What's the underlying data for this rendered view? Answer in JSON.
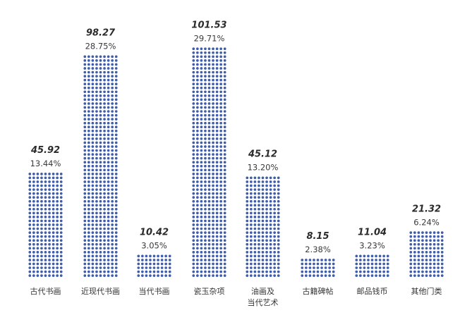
{
  "chart_data": {
    "type": "bar",
    "categories": [
      "古代书画",
      "近现代书画",
      "当代书画",
      "瓷玉杂项",
      "油画及当代艺术",
      "古籍碑帖",
      "邮品钱币",
      "其他门类"
    ],
    "category_lines": [
      [
        "古代书画"
      ],
      [
        "近现代书画"
      ],
      [
        "当代书画"
      ],
      [
        "瓷玉杂项"
      ],
      [
        "油画及",
        "当代艺术"
      ],
      [
        "古籍碑帖"
      ],
      [
        "邮品钱币"
      ],
      [
        "其他门类"
      ]
    ],
    "values": [
      45.92,
      98.27,
      10.42,
      101.53,
      45.12,
      8.15,
      11.04,
      21.32
    ],
    "value_labels": [
      "45.92",
      "98.27",
      "10.42",
      "101.53",
      "45.12",
      "8.15",
      "11.04",
      "21.32"
    ],
    "percent_labels": [
      "13.44%",
      "28.75%",
      "3.05%",
      "29.71%",
      "13.20%",
      "2.38%",
      "3.23%",
      "6.24%"
    ],
    "title": "",
    "xlabel": "",
    "ylabel": "",
    "ylim": [
      0,
      101.53
    ],
    "grid": false,
    "legend": "none",
    "colors": {
      "dot": "#3f5dab",
      "value_text": "#2b2b2b",
      "percent_text": "#3a3a3a",
      "category_text": "#333333"
    }
  }
}
